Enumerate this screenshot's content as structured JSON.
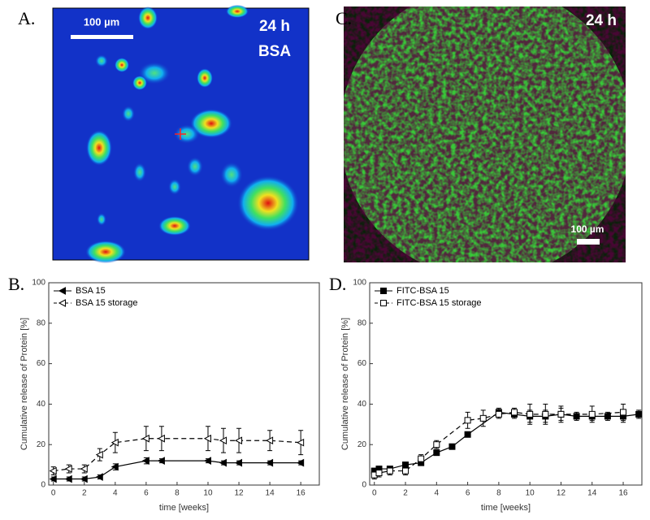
{
  "images": [
    {
      "label": "A.",
      "scale_bar": "100 µm",
      "time": "24 h",
      "protein": "BSA"
    },
    {
      "label": "C.",
      "time": "24 h",
      "scale_bar": "100 µm"
    }
  ],
  "chart_data": [
    {
      "type": "line",
      "panel_label": "B.",
      "xlabel": "time [weeks]",
      "ylabel": "Cumulative release of Protein [%]",
      "xlim": [
        -0.3,
        17.2
      ],
      "xticks": [
        0,
        2,
        4,
        6,
        8,
        10,
        12,
        14,
        16
      ],
      "ylim": [
        0,
        100
      ],
      "yticks": [
        0,
        20,
        40,
        60,
        80,
        100
      ],
      "legend": "upper left",
      "series": [
        {
          "name": "BSA 15",
          "color": "#000000",
          "marker": "triangle-left",
          "filled": true,
          "linestyle": "solid",
          "x": [
            0,
            1,
            2,
            3,
            4,
            6,
            7,
            10,
            11,
            12,
            14,
            16
          ],
          "values": [
            3,
            3,
            3,
            4,
            9,
            12,
            12,
            12,
            11,
            11,
            11,
            11
          ],
          "errors": [
            1,
            1,
            1,
            1,
            1.5,
            1.5,
            1,
            1,
            1,
            1,
            1,
            1
          ]
        },
        {
          "name": "BSA 15 storage",
          "color": "#000000",
          "marker": "triangle-left",
          "filled": false,
          "linestyle": "dashed",
          "x": [
            0,
            1,
            2,
            3,
            4,
            6,
            7,
            10,
            11,
            12,
            14,
            16
          ],
          "values": [
            7,
            8,
            8,
            15,
            21,
            23,
            23,
            23,
            22,
            22,
            22,
            21
          ],
          "errors": [
            2,
            2,
            2,
            3,
            5,
            6,
            6,
            6,
            6,
            6,
            5,
            6
          ]
        }
      ]
    },
    {
      "type": "line",
      "panel_label": "D.",
      "xlabel": "time [weeks]",
      "ylabel": "Cumulative release of Protein [%]",
      "xlim": [
        -0.3,
        17.2
      ],
      "xticks": [
        0,
        2,
        4,
        6,
        8,
        10,
        12,
        14,
        16
      ],
      "ylim": [
        0,
        100
      ],
      "yticks": [
        0,
        20,
        40,
        60,
        80,
        100
      ],
      "legend": "upper left",
      "series": [
        {
          "name": "FITC-BSA 15",
          "color": "#000000",
          "marker": "square",
          "filled": true,
          "linestyle": "solid",
          "x": [
            0,
            0.3,
            1,
            2,
            3,
            4,
            5,
            6,
            8,
            9,
            10,
            11,
            12,
            13,
            14,
            15,
            16,
            17
          ],
          "values": [
            7,
            8,
            8,
            10,
            11,
            16,
            19,
            25,
            36,
            35,
            34,
            34,
            35,
            34,
            34,
            34,
            34,
            35
          ],
          "errors": [
            1,
            1,
            1,
            1,
            1,
            1,
            1,
            1,
            2,
            2,
            3,
            3,
            3,
            2,
            2,
            2,
            3,
            2
          ]
        },
        {
          "name": "FITC-BSA 15 storage",
          "color": "#000000",
          "marker": "square",
          "filled": false,
          "linestyle": "dashed",
          "x": [
            0,
            0.3,
            1,
            2,
            3,
            4,
            6,
            7,
            8,
            9,
            10,
            11,
            12,
            14,
            16
          ],
          "values": [
            5,
            6,
            7,
            7,
            13,
            20,
            32,
            33,
            35,
            36,
            35,
            35,
            35,
            35,
            36
          ],
          "errors": [
            2,
            2,
            2,
            2,
            2,
            2,
            4,
            4,
            2,
            2,
            5,
            5,
            4,
            4,
            4
          ]
        }
      ]
    }
  ]
}
